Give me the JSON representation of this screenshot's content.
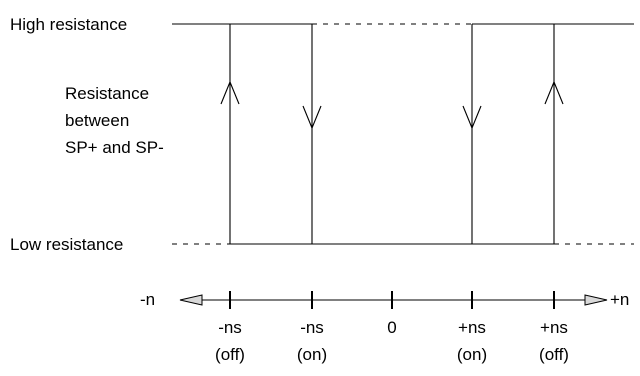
{
  "labels": {
    "high_resistance": "High resistance",
    "low_resistance": "Low resistance",
    "y_axis": [
      "Resistance",
      "between",
      "SP+ and SP-"
    ]
  },
  "axis": {
    "left_end": "-n",
    "right_end": "+n"
  },
  "ticks": [
    {
      "value": "-ns",
      "state": "(off)"
    },
    {
      "value": "-ns",
      "state": "(on)"
    },
    {
      "value": "0",
      "state": ""
    },
    {
      "value": "+ns",
      "state": "(on)"
    },
    {
      "value": "+ns",
      "state": "(off)"
    }
  ],
  "transitions": [
    {
      "at": "-ns (off)",
      "direction": "up"
    },
    {
      "at": "-ns (on)",
      "direction": "down"
    },
    {
      "at": "+ns (on)",
      "direction": "down"
    },
    {
      "at": "+ns (off)",
      "direction": "up"
    }
  ],
  "colors": {
    "line": "#000000",
    "axis_arrow_fill": "#d9d9d9",
    "background": "#ffffff"
  }
}
